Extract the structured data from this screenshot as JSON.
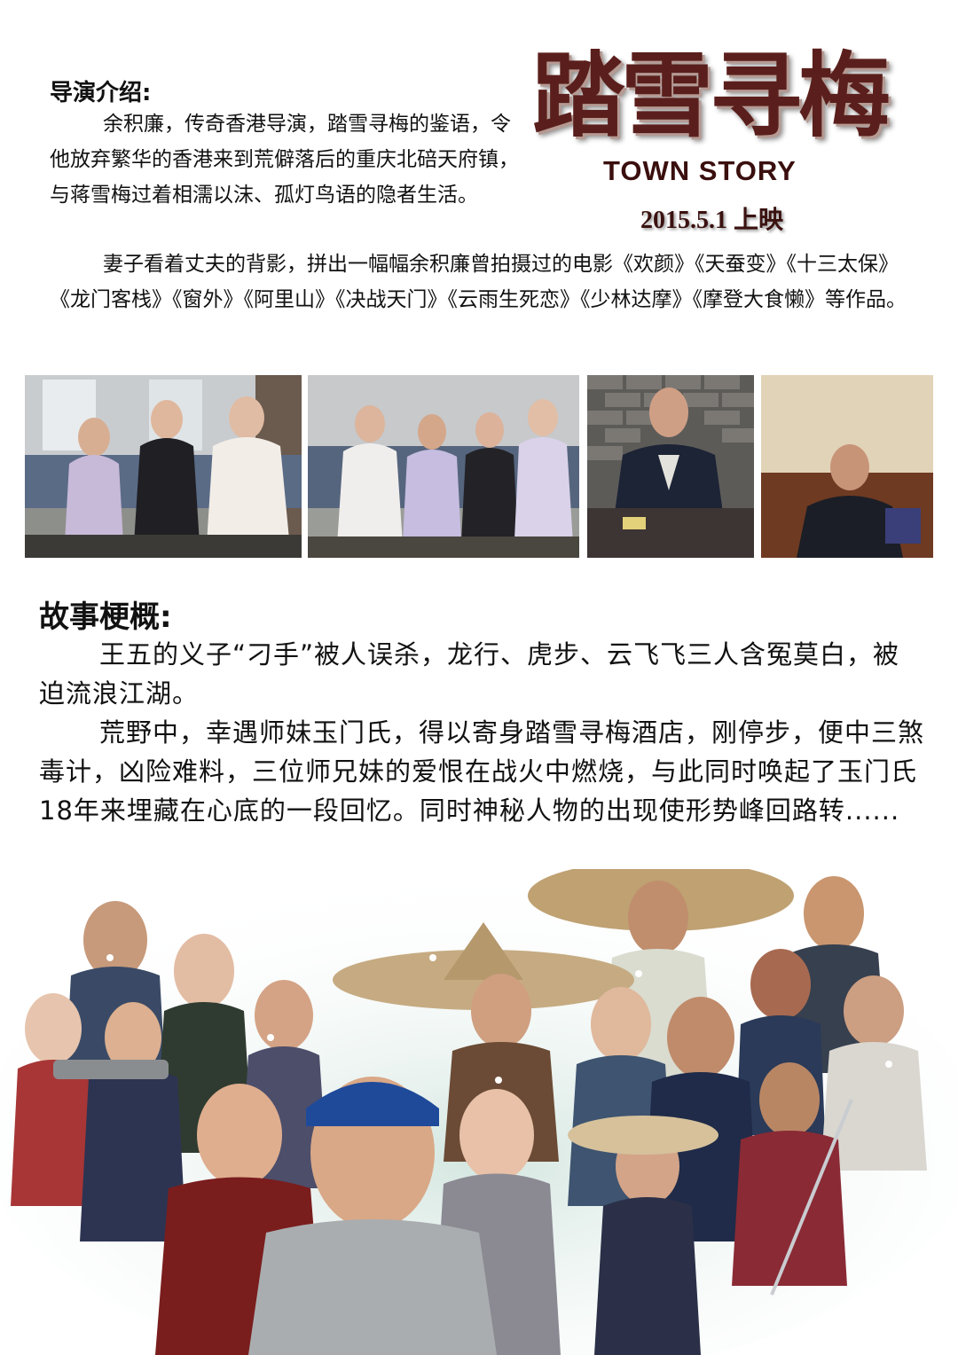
{
  "poster": {
    "title_cn": "踏雪寻梅",
    "title_en": "TOWN STORY",
    "release": "2015.5.1 上映"
  },
  "director": {
    "heading": "导演介绍:",
    "paragraph_1": "余积廉，传奇香港导演，踏雪寻梅的鉴语，令他放弃繁华的香港来到荒僻落后的重庆北碚天府镇，与蒋雪梅过着相濡以沫、孤灯鸟语的隐者生活。",
    "paragraph_2": "妻子看着丈夫的背影，拼出一幅幅余积廉曾拍摄过的电影《欢颜》《天蚕变》《十三太保》《龙门客栈》《窗外》《阿里山》《决战天门》《云雨生死恋》《少林达摩》《摩登大食懒》等作品。"
  },
  "story": {
    "heading": "故事梗概:",
    "paragraph_1": "王五的义子“刁手”被人误杀，龙行、虎步、云飞飞三人含冤莫白，被迫流浪江湖。",
    "paragraph_2": "荒野中，幸遇师妹玉门氏，得以寄身踏雪寻梅酒店，刚停步，便中三煞毒计，凶险难料，三位师兄妹的爱恨在战火中燃烧，与此同时唤起了玉门氏18年来埋藏在心底的一段回忆。同时神秘人物的出现使形势峰回路转......"
  },
  "colors": {
    "title": "#5a1f1c",
    "title_en": "#3a0f0e",
    "text": "#111111",
    "collage_glow": "#cfe3dc"
  }
}
